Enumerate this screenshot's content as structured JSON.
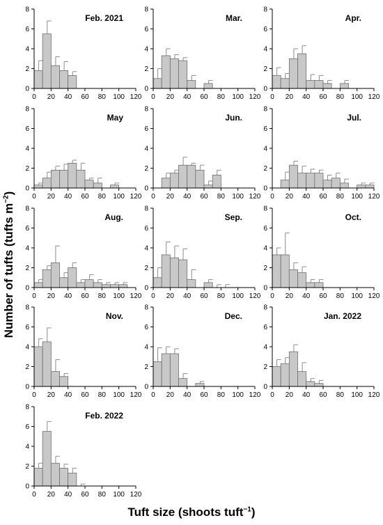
{
  "figure": {
    "ylabel": "Number of tufts (tufts m",
    "ylabel_sup": "−2",
    "ylabel_end": ")",
    "xlabel": "Tuft size (shoots tuft",
    "xlabel_sup": "−1",
    "xlabel_end": ")"
  },
  "chart_data": [
    {
      "type": "bar",
      "title": "Feb. 2021",
      "bin_width": 10,
      "x": [
        5,
        15,
        25,
        35,
        45
      ],
      "values": [
        1.8,
        5.5,
        2.3,
        1.8,
        1.3
      ],
      "err": [
        1.0,
        1.3,
        0.9,
        0.9,
        0.4
      ],
      "xlim": [
        0,
        120
      ],
      "ylim": [
        0,
        8
      ],
      "xticks": [
        0,
        20,
        40,
        60,
        80,
        100,
        120
      ],
      "yticks": [
        0,
        2,
        4,
        6,
        8
      ]
    },
    {
      "type": "bar",
      "title": "Mar.",
      "bin_width": 10,
      "x": [
        5,
        15,
        25,
        35,
        45,
        65
      ],
      "values": [
        1.0,
        3.3,
        3.0,
        2.8,
        0.8,
        0.5
      ],
      "err": [
        1.0,
        0.7,
        0.4,
        0.3,
        0.5,
        0.3
      ],
      "xlim": [
        0,
        120
      ],
      "ylim": [
        0,
        8
      ],
      "xticks": [
        0,
        20,
        40,
        60,
        80,
        100,
        120
      ],
      "yticks": [
        0,
        2,
        4,
        6,
        8
      ]
    },
    {
      "type": "bar",
      "title": "Apr.",
      "bin_width": 10,
      "x": [
        5,
        15,
        25,
        35,
        45,
        55,
        65,
        85
      ],
      "values": [
        1.3,
        1.0,
        3.0,
        3.5,
        0.8,
        0.8,
        0.5,
        0.5
      ],
      "err": [
        0.8,
        0.5,
        1.0,
        0.8,
        0.6,
        0.5,
        0.3,
        0.3
      ],
      "xlim": [
        0,
        120
      ],
      "ylim": [
        0,
        8
      ],
      "xticks": [
        0,
        20,
        40,
        60,
        80,
        100,
        120
      ],
      "yticks": [
        0,
        2,
        4,
        6,
        8
      ]
    },
    {
      "type": "bar",
      "title": "May",
      "bin_width": 10,
      "x": [
        5,
        15,
        25,
        35,
        45,
        55,
        65,
        75,
        95
      ],
      "values": [
        0.3,
        1.0,
        1.8,
        1.8,
        2.5,
        1.8,
        0.8,
        0.5,
        0.3
      ],
      "err": [
        0.2,
        0.6,
        0.4,
        0.6,
        0.3,
        0.7,
        0.2,
        0.5,
        0.2
      ],
      "xlim": [
        0,
        120
      ],
      "ylim": [
        0,
        8
      ],
      "xticks": [
        0,
        20,
        40,
        60,
        80,
        100,
        120
      ],
      "yticks": [
        0,
        2,
        4,
        6,
        8
      ]
    },
    {
      "type": "bar",
      "title": "Jun.",
      "bin_width": 10,
      "x": [
        15,
        25,
        35,
        45,
        55,
        65,
        75
      ],
      "values": [
        1.0,
        1.5,
        2.3,
        2.3,
        1.8,
        0.3,
        1.3
      ],
      "err": [
        0.5,
        0.3,
        0.8,
        0.2,
        0.5,
        0.4,
        0.5
      ],
      "xlim": [
        0,
        120
      ],
      "ylim": [
        0,
        8
      ],
      "xticks": [
        0,
        20,
        40,
        60,
        80,
        100,
        120
      ],
      "yticks": [
        0,
        2,
        4,
        6,
        8
      ]
    },
    {
      "type": "bar",
      "title": "Jul.",
      "bin_width": 10,
      "x": [
        15,
        25,
        35,
        45,
        55,
        65,
        75,
        85,
        105,
        115
      ],
      "values": [
        0.8,
        2.3,
        1.5,
        1.5,
        1.5,
        0.8,
        1.0,
        0.5,
        0.3,
        0.3
      ],
      "err": [
        0.8,
        0.4,
        0.7,
        0.4,
        0.3,
        0.5,
        0.5,
        0.4,
        0.2,
        0.2
      ],
      "xlim": [
        0,
        120
      ],
      "ylim": [
        0,
        8
      ],
      "xticks": [
        0,
        20,
        40,
        60,
        80,
        100,
        120
      ],
      "yticks": [
        0,
        2,
        4,
        6,
        8
      ]
    },
    {
      "type": "bar",
      "title": "Aug.",
      "bin_width": 10,
      "x": [
        5,
        15,
        25,
        35,
        45,
        55,
        65,
        75,
        85,
        95,
        105
      ],
      "values": [
        0.5,
        1.8,
        2.5,
        1.0,
        2.0,
        0.5,
        0.8,
        0.5,
        0.3,
        0.3,
        0.3
      ],
      "err": [
        0.3,
        0.4,
        1.7,
        0.5,
        0.5,
        0.3,
        0.5,
        0.3,
        0.2,
        0.2,
        0.2
      ],
      "xlim": [
        0,
        120
      ],
      "ylim": [
        0,
        8
      ],
      "xticks": [
        0,
        20,
        40,
        60,
        80,
        100,
        120
      ],
      "yticks": [
        0,
        2,
        4,
        6,
        8
      ]
    },
    {
      "type": "bar",
      "title": "Sep.",
      "bin_width": 10,
      "x": [
        5,
        15,
        25,
        35,
        45,
        65,
        75,
        85
      ],
      "values": [
        1.0,
        3.3,
        3.0,
        2.8,
        0.8,
        0.5,
        0.0,
        0.0
      ],
      "err": [
        1.0,
        1.3,
        1.2,
        1.1,
        1.0,
        0.3,
        0.3,
        0.3
      ],
      "xlim": [
        0,
        120
      ],
      "ylim": [
        0,
        8
      ],
      "xticks": [
        0,
        20,
        40,
        60,
        80,
        100,
        120
      ],
      "yticks": [
        0,
        2,
        4,
        6,
        8
      ]
    },
    {
      "type": "bar",
      "title": "Oct.",
      "bin_width": 10,
      "x": [
        5,
        15,
        25,
        35,
        45,
        55
      ],
      "values": [
        3.3,
        3.3,
        1.8,
        1.5,
        0.5,
        0.5
      ],
      "err": [
        0.7,
        2.2,
        0.7,
        0.6,
        0.3,
        0.3
      ],
      "xlim": [
        0,
        120
      ],
      "ylim": [
        0,
        8
      ],
      "xticks": [
        0,
        20,
        40,
        60,
        80,
        100,
        120
      ],
      "yticks": [
        0,
        2,
        4,
        6,
        8
      ]
    },
    {
      "type": "bar",
      "title": "Nov.",
      "bin_width": 10,
      "x": [
        5,
        15,
        25,
        35
      ],
      "values": [
        4.0,
        4.5,
        1.5,
        1.0
      ],
      "err": [
        0.8,
        1.4,
        1.2,
        0.3
      ],
      "xlim": [
        0,
        120
      ],
      "ylim": [
        0,
        8
      ],
      "xticks": [
        0,
        20,
        40,
        60,
        80,
        100,
        120
      ],
      "yticks": [
        0,
        2,
        4,
        6,
        8
      ]
    },
    {
      "type": "bar",
      "title": "Dec.",
      "bin_width": 10,
      "x": [
        5,
        15,
        25,
        35,
        55
      ],
      "values": [
        2.5,
        3.3,
        3.3,
        0.8,
        0.3
      ],
      "err": [
        1.4,
        0.7,
        0.5,
        0.5,
        0.2
      ],
      "xlim": [
        0,
        120
      ],
      "ylim": [
        0,
        8
      ],
      "xticks": [
        0,
        20,
        40,
        60,
        80,
        100,
        120
      ],
      "yticks": [
        0,
        2,
        4,
        6,
        8
      ]
    },
    {
      "type": "bar",
      "title": "Jan. 2022",
      "bin_width": 10,
      "x": [
        5,
        15,
        25,
        35,
        45,
        55
      ],
      "values": [
        2.0,
        2.3,
        3.5,
        1.5,
        0.5,
        0.3
      ],
      "err": [
        0.7,
        0.6,
        0.7,
        0.9,
        0.3,
        0.3
      ],
      "xlim": [
        0,
        120
      ],
      "ylim": [
        0,
        8
      ],
      "xticks": [
        0,
        20,
        40,
        60,
        80,
        100,
        120
      ],
      "yticks": [
        0,
        2,
        4,
        6,
        8
      ]
    },
    {
      "type": "bar",
      "title": "Feb. 2022",
      "bin_width": 10,
      "x": [
        5,
        15,
        25,
        35,
        45,
        55
      ],
      "values": [
        1.8,
        5.5,
        2.3,
        1.8,
        1.3,
        0.0
      ],
      "err": [
        0.5,
        1.0,
        0.7,
        0.4,
        0.5,
        0.2
      ],
      "xlim": [
        0,
        120
      ],
      "ylim": [
        0,
        8
      ],
      "xticks": [
        0,
        20,
        40,
        60,
        80,
        100,
        120
      ],
      "yticks": [
        0,
        2,
        4,
        6,
        8
      ]
    }
  ],
  "style": {
    "bar_fill": "#c8c8c8",
    "bar_stroke": "#6e6e6e",
    "axis_color": "#000000",
    "error_color": "#8c8c8c"
  }
}
